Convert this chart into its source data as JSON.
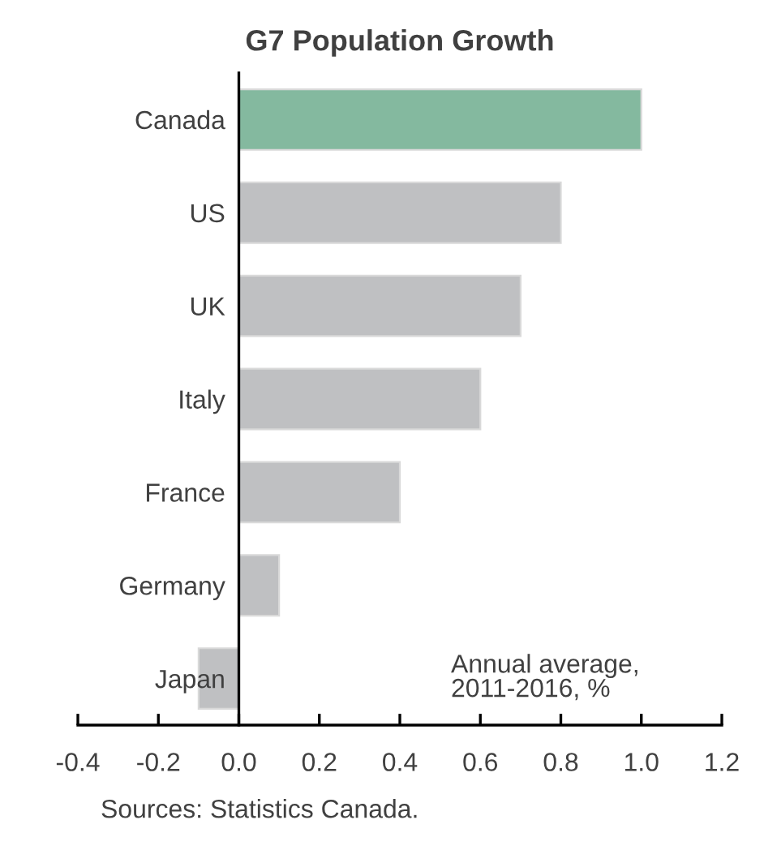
{
  "chart_data": {
    "type": "bar",
    "orientation": "horizontal",
    "title": "G7 Population Growth",
    "categories": [
      "Canada",
      "US",
      "UK",
      "Italy",
      "France",
      "Germany",
      "Japan"
    ],
    "values": [
      1.0,
      0.8,
      0.7,
      0.6,
      0.4,
      0.1,
      -0.1
    ],
    "colors": [
      "#84b99f",
      "#bfc0c2",
      "#bfc0c2",
      "#bfc0c2",
      "#bfc0c2",
      "#bfc0c2",
      "#bfc0c2"
    ],
    "xlim": [
      -0.4,
      1.2
    ],
    "xticks": [
      {
        "value": -0.4,
        "label": "-0.4"
      },
      {
        "value": -0.2,
        "label": "-0.2"
      },
      {
        "value": 0,
        "label": "0.0"
      },
      {
        "value": 0.2,
        "label": "0.2"
      },
      {
        "value": 0.4,
        "label": "0.4"
      },
      {
        "value": 0.6,
        "label": "0.6"
      },
      {
        "value": 0.8,
        "label": "0.8"
      },
      {
        "value": 1.0,
        "label": "1.0"
      },
      {
        "value": 1.2,
        "label": "1.2"
      }
    ],
    "grid": false,
    "legend": false,
    "annotations": [
      "Annual average,\n2011-2016, %",
      "Sources: Statistics Canada."
    ]
  }
}
